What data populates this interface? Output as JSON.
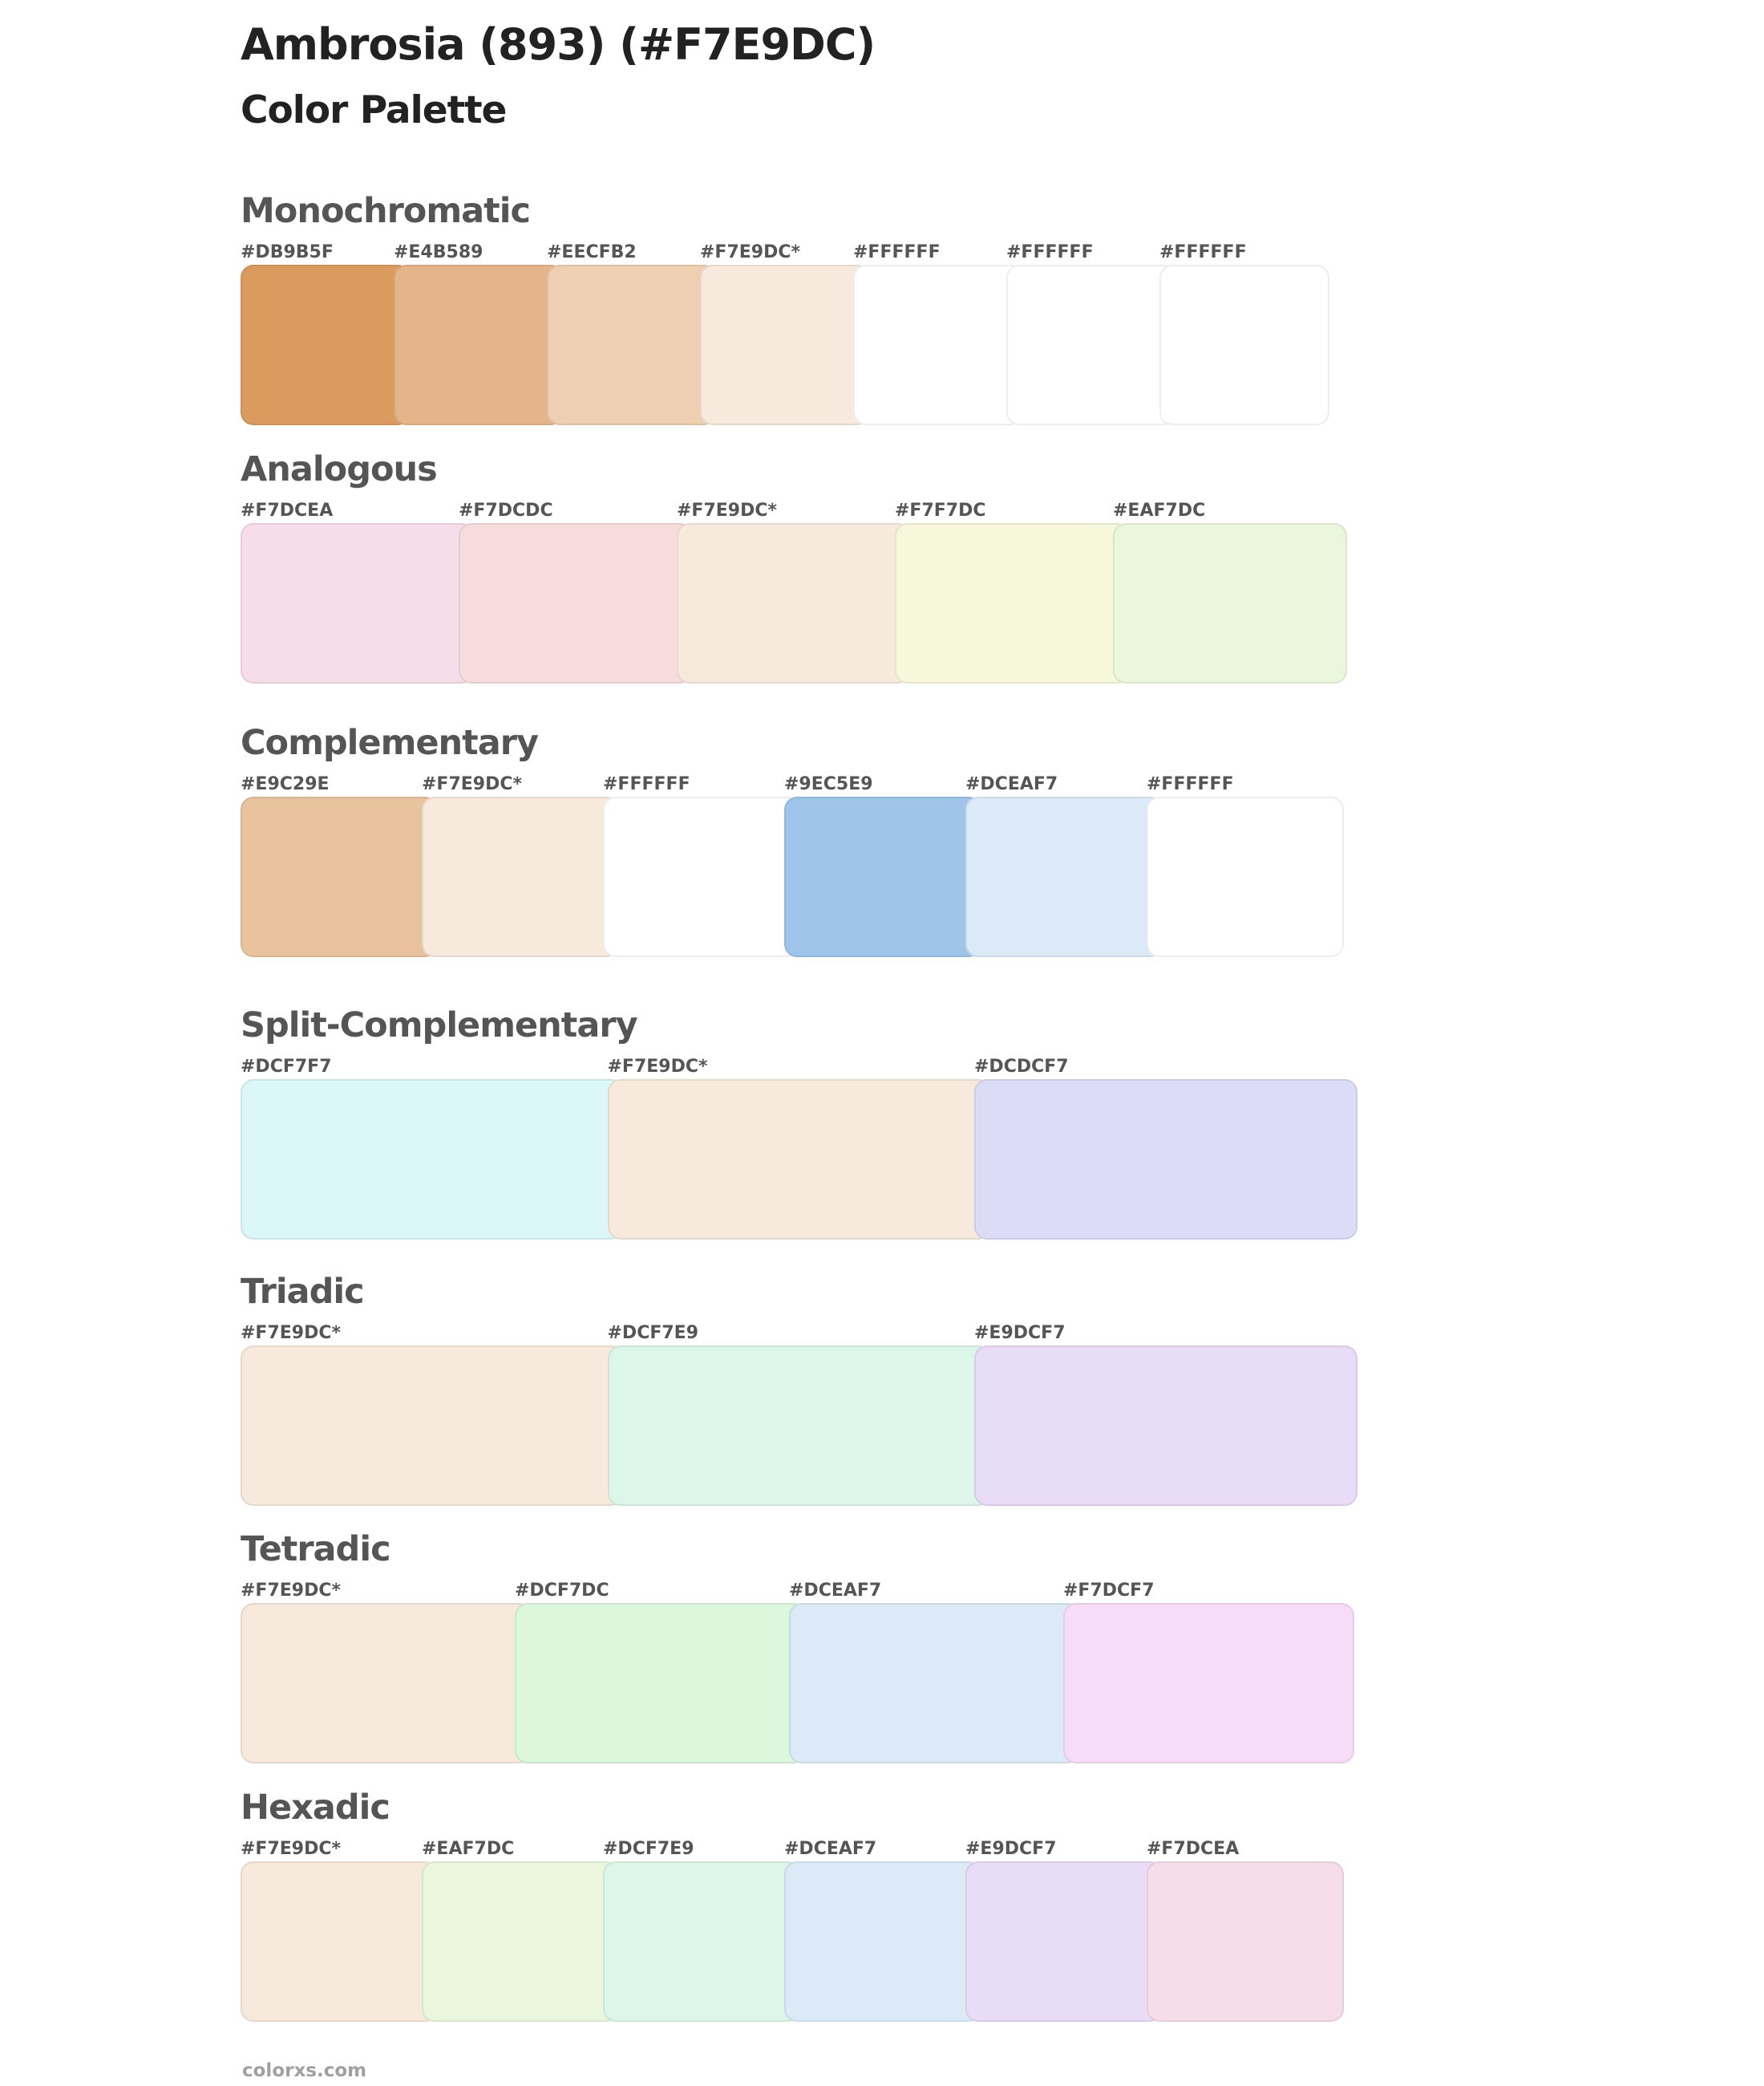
{
  "header": {
    "title": "Ambrosia (893) (#F7E9DC)",
    "subtitle": "Color Palette"
  },
  "base_color": "#F7E9DC",
  "sections": {
    "monochromatic": {
      "heading": "Monochromatic",
      "swatches": [
        {
          "label": "#DB9B5F",
          "color": "#DB9B5F"
        },
        {
          "label": "#E4B589",
          "color": "#E4B589"
        },
        {
          "label": "#EECFB2",
          "color": "#EECFB2"
        },
        {
          "label": "#F7E9DC*",
          "color": "#F7E9DC"
        },
        {
          "label": "#FFFFFF",
          "color": "#FFFFFF"
        },
        {
          "label": "#FFFFFF",
          "color": "#FFFFFF"
        },
        {
          "label": "#FFFFFF",
          "color": "#FFFFFF"
        }
      ]
    },
    "analogous": {
      "heading": "Analogous",
      "swatches": [
        {
          "label": "#F7DCEA",
          "color": "#F7DCEA"
        },
        {
          "label": "#F7DCDC",
          "color": "#F7DCDC"
        },
        {
          "label": "#F7E9DC*",
          "color": "#F7E9DC"
        },
        {
          "label": "#F7F7DC",
          "color": "#F7F7DC"
        },
        {
          "label": "#EAF7DC",
          "color": "#EAF7DC"
        }
      ]
    },
    "complementary": {
      "heading": "Complementary",
      "swatches": [
        {
          "label": "#E9C29E",
          "color": "#E9C29E"
        },
        {
          "label": "#F7E9DC*",
          "color": "#F7E9DC"
        },
        {
          "label": "#FFFFFF",
          "color": "#FFFFFF"
        },
        {
          "label": "#9EC5E9",
          "color": "#9EC5E9"
        },
        {
          "label": "#DCEAF7",
          "color": "#DCEAF7"
        },
        {
          "label": "#FFFFFF",
          "color": "#FFFFFF"
        }
      ]
    },
    "split_complementary": {
      "heading": "Split-Complementary",
      "swatches": [
        {
          "label": "#DCF7F7",
          "color": "#DCF7F7"
        },
        {
          "label": "#F7E9DC*",
          "color": "#F7E9DC"
        },
        {
          "label": "#DCDCF7",
          "color": "#DCDCF7"
        }
      ]
    },
    "triadic": {
      "heading": "Triadic",
      "swatches": [
        {
          "label": "#F7E9DC*",
          "color": "#F7E9DC"
        },
        {
          "label": "#DCF7E9",
          "color": "#DCF7E9"
        },
        {
          "label": "#E9DCF7",
          "color": "#E9DCF7"
        }
      ]
    },
    "tetradic": {
      "heading": "Tetradic",
      "swatches": [
        {
          "label": "#F7E9DC*",
          "color": "#F7E9DC"
        },
        {
          "label": "#DCF7DC",
          "color": "#DCF7DC"
        },
        {
          "label": "#DCEAF7",
          "color": "#DCEAF7"
        },
        {
          "label": "#F7DCF7",
          "color": "#F7DCF7"
        }
      ]
    },
    "hexadic": {
      "heading": "Hexadic",
      "swatches": [
        {
          "label": "#F7E9DC*",
          "color": "#F7E9DC"
        },
        {
          "label": "#EAF7DC",
          "color": "#EAF7DC"
        },
        {
          "label": "#DCF7E9",
          "color": "#DCF7E9"
        },
        {
          "label": "#DCEAF7",
          "color": "#DCEAF7"
        },
        {
          "label": "#E9DCF7",
          "color": "#E9DCF7"
        },
        {
          "label": "#F7DCEA",
          "color": "#F7DCEA"
        }
      ]
    }
  },
  "footer": {
    "site": "colorxs.com"
  }
}
